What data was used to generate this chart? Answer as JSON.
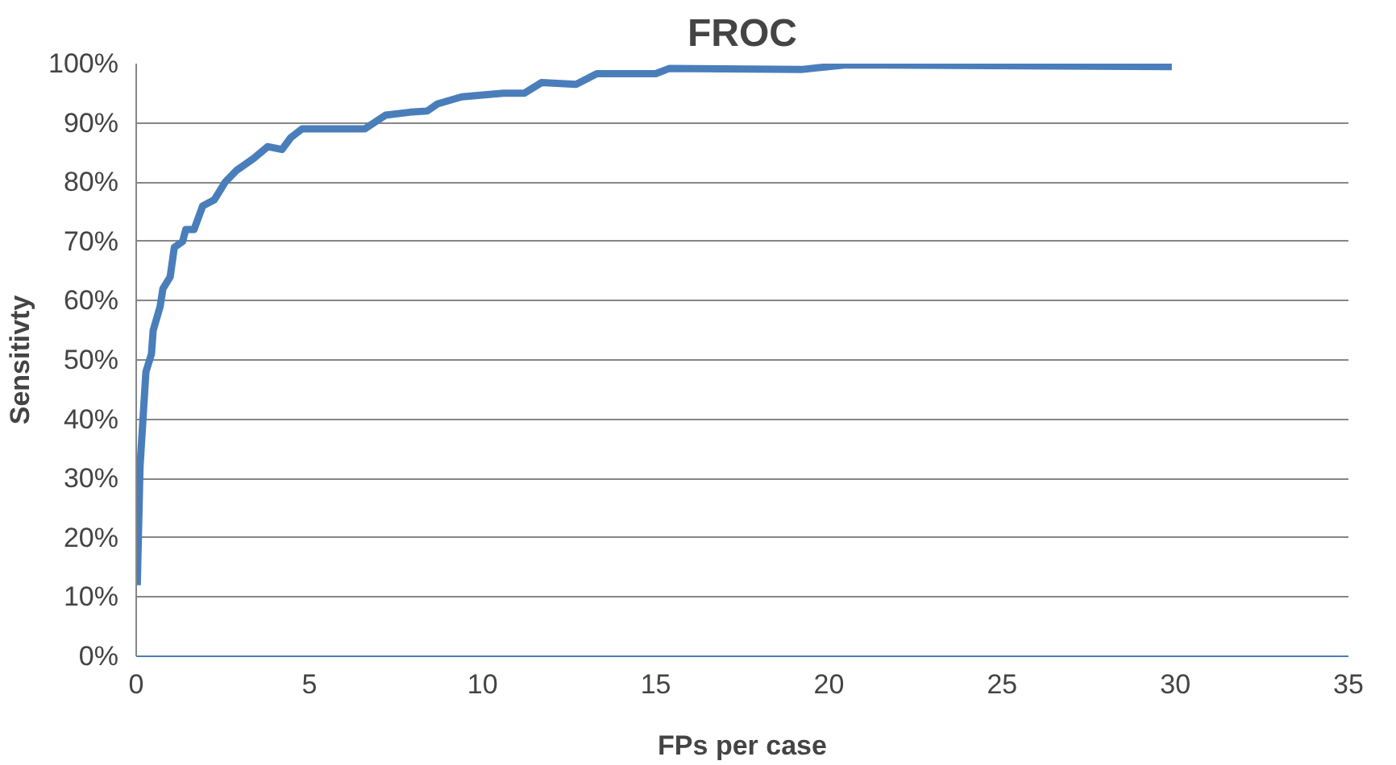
{
  "chart_data": {
    "type": "line",
    "title": "FROC",
    "xlabel": "FPs per case",
    "ylabel": "Sensitivty",
    "x": [
      0.03,
      0.11,
      0.28,
      0.44,
      0.49,
      0.69,
      0.77,
      0.98,
      1.1,
      1.34,
      1.43,
      1.67,
      1.92,
      2.25,
      2.57,
      2.9,
      3.39,
      3.8,
      4.21,
      4.46,
      4.79,
      6.6,
      7.2,
      7.9,
      8.4,
      8.7,
      9.4,
      10.6,
      11.2,
      11.7,
      12.7,
      13.3,
      15.0,
      15.4,
      19.2,
      20.5,
      29.9
    ],
    "series": [
      {
        "color": "#4a7ebb",
        "values": [
          12,
          32,
          48,
          51,
          55,
          59,
          62,
          64,
          69,
          70,
          72,
          72,
          76,
          77,
          80,
          82,
          84,
          86,
          85.5,
          87.5,
          89,
          89,
          91.3,
          91.8,
          92,
          93.2,
          94.4,
          95,
          95,
          96.8,
          96.5,
          98.3,
          98.3,
          99.2,
          99,
          99.8,
          99.5
        ]
      }
    ],
    "xlim": [
      0,
      35
    ],
    "ylim": [
      0,
      100
    ],
    "xticks": [
      0,
      5,
      10,
      15,
      20,
      25,
      30,
      35
    ],
    "yticks": [
      {
        "value": 0,
        "label": "0%"
      },
      {
        "value": 10,
        "label": "10%"
      },
      {
        "value": 20,
        "label": "20%"
      },
      {
        "value": 30,
        "label": "30%"
      },
      {
        "value": 40,
        "label": "40%"
      },
      {
        "value": 50,
        "label": "50%"
      },
      {
        "value": 60,
        "label": "60%"
      },
      {
        "value": 70,
        "label": "70%"
      },
      {
        "value": 80,
        "label": "80%"
      },
      {
        "value": 90,
        "label": "90%"
      },
      {
        "value": 100,
        "label": "100%"
      }
    ],
    "grid": "y",
    "line_style": "solid"
  }
}
